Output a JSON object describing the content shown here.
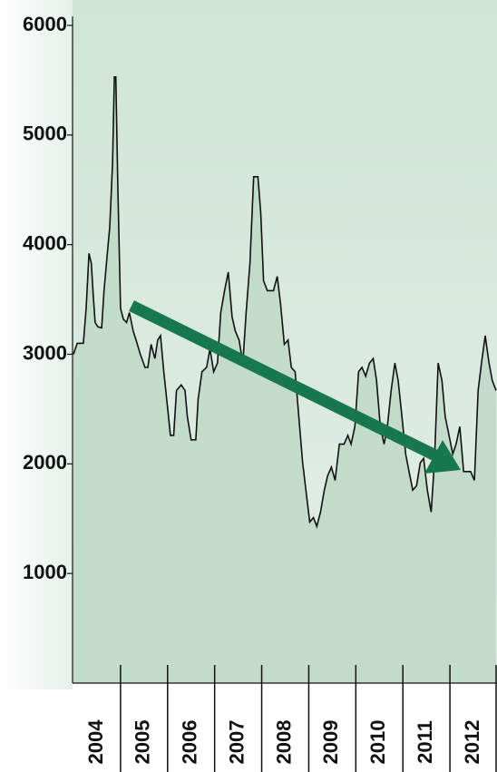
{
  "chart_data": {
    "type": "area",
    "categories": [
      "2004",
      "2005",
      "2006",
      "2007",
      "2008",
      "2009",
      "2010",
      "2011",
      "2012"
    ],
    "x": [
      2004.0,
      2004.08,
      2004.21,
      2004.27,
      2004.33,
      2004.38,
      2004.42,
      2004.46,
      2004.52,
      2004.6,
      2004.65,
      2004.71,
      2004.77,
      2004.83,
      2004.87,
      2004.9,
      2004.94,
      2005.0,
      2005.06,
      2005.13,
      2005.19,
      2005.27,
      2005.33,
      2005.42,
      2005.52,
      2005.58,
      2005.65,
      2005.73,
      2005.79,
      2005.85,
      2005.92,
      2006.0,
      2006.06,
      2006.13,
      2006.19,
      2006.29,
      2006.37,
      2006.42,
      2006.5,
      2006.6,
      2006.65,
      2006.73,
      2006.83,
      2006.9,
      2006.98,
      2007.06,
      2007.13,
      2007.21,
      2007.29,
      2007.37,
      2007.44,
      2007.52,
      2007.6,
      2007.67,
      2007.75,
      2007.83,
      2007.92,
      2007.98,
      2008.04,
      2008.12,
      2008.25,
      2008.33,
      2008.4,
      2008.48,
      2008.56,
      2008.63,
      2008.71,
      2008.79,
      2008.87,
      2008.94,
      2009.02,
      2009.1,
      2009.17,
      2009.25,
      2009.33,
      2009.4,
      2009.48,
      2009.56,
      2009.65,
      2009.75,
      2009.83,
      2009.9,
      2009.98,
      2010.06,
      2010.13,
      2010.21,
      2010.29,
      2010.37,
      2010.44,
      2010.52,
      2010.6,
      2010.67,
      2010.75,
      2010.83,
      2010.9,
      2010.98,
      2011.06,
      2011.13,
      2011.21,
      2011.29,
      2011.37,
      2011.44,
      2011.52,
      2011.6,
      2011.67,
      2011.75,
      2011.83,
      2011.9,
      2011.98,
      2012.06,
      2012.13,
      2012.21,
      2012.29,
      2012.44,
      2012.52,
      2012.6,
      2012.67,
      2012.75,
      2012.83,
      2012.9,
      2012.98
    ],
    "values": [
      3000,
      3100,
      3100,
      3420,
      3920,
      3830,
      3540,
      3290,
      3250,
      3240,
      3580,
      3870,
      4160,
      4740,
      5530,
      5530,
      4580,
      3420,
      3320,
      3290,
      3380,
      3210,
      3130,
      3000,
      2880,
      2880,
      3090,
      2960,
      3130,
      3170,
      2840,
      2510,
      2260,
      2260,
      2670,
      2720,
      2670,
      2430,
      2220,
      2220,
      2590,
      2840,
      2880,
      3050,
      2840,
      2920,
      3380,
      3580,
      3750,
      3340,
      3210,
      3130,
      2920,
      3380,
      3830,
      4620,
      4620,
      4290,
      3670,
      3580,
      3580,
      3710,
      3460,
      3090,
      3130,
      2880,
      2840,
      2430,
      2010,
      1760,
      1470,
      1510,
      1430,
      1560,
      1760,
      1890,
      1970,
      1850,
      2180,
      2180,
      2260,
      2180,
      2340,
      2840,
      2880,
      2800,
      2920,
      2960,
      2760,
      2340,
      2180,
      2340,
      2670,
      2920,
      2760,
      2430,
      2090,
      1930,
      1760,
      1800,
      2010,
      2050,
      1760,
      1560,
      2010,
      2920,
      2760,
      2430,
      2260,
      2090,
      2180,
      2340,
      1930,
      1930,
      1850,
      2670,
      2920,
      3170,
      2920,
      2760,
      2670
    ],
    "color": "#c2dbcb",
    "line_color": "#111111",
    "xlim": [
      2004,
      2013
    ],
    "ylim": [
      0,
      6000
    ],
    "yticks": [
      1000,
      2000,
      3000,
      4000,
      5000,
      6000
    ]
  }
}
